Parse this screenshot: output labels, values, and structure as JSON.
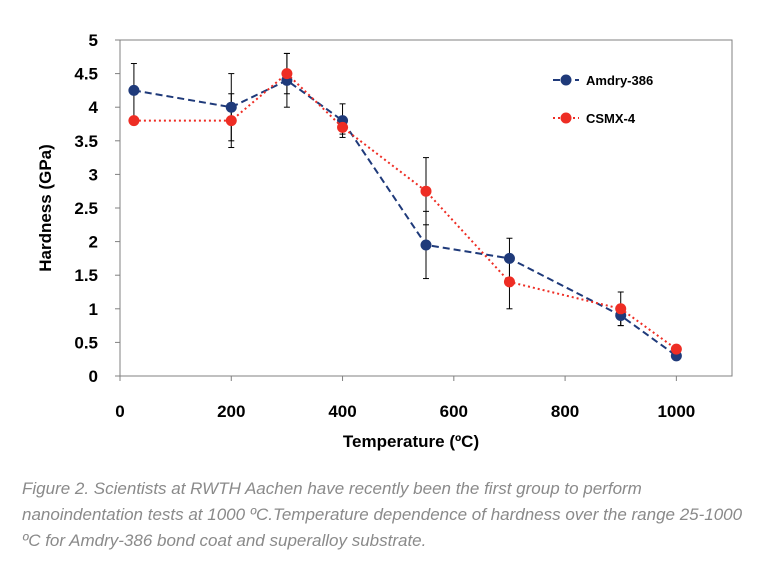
{
  "caption": "Figure 2. Scientists at RWTH Aachen have recently been the first group to perform nanoindentation tests at 1000 ºC.Temperature dependence of hardness over the range 25-1000 ºC for Amdry-386 bond coat and superalloy substrate.",
  "colors": {
    "amdry": "#1f3a7a",
    "csmx": "#ee2d24",
    "axis": "#808080",
    "errorbar": "#000000"
  },
  "chart_data": {
    "type": "line",
    "title": "",
    "xlabel": "Temperature (ºC)",
    "ylabel": "Hardness (GPa)",
    "xlim": [
      0,
      1100
    ],
    "ylim": [
      0,
      5
    ],
    "xticks": [
      "0",
      "200",
      "400",
      "600",
      "800",
      "1000"
    ],
    "yticks": [
      "0",
      "0.5",
      "1",
      "1.5",
      "2",
      "2.5",
      "3",
      "3.5",
      "4",
      "4.5",
      "5"
    ],
    "grid": false,
    "legend_position": "top-right",
    "series": [
      {
        "name": "Amdry-386",
        "line_style": "dashed",
        "color": "#1f3a7a",
        "x": [
          25,
          200,
          300,
          400,
          550,
          700,
          900,
          1000
        ],
        "y": [
          4.25,
          4.0,
          4.4,
          3.8,
          1.95,
          1.75,
          0.9,
          0.3
        ],
        "error": [
          0.4,
          0.5,
          0.4,
          0.25,
          0.5,
          0.3,
          0.15,
          0.05
        ]
      },
      {
        "name": "CSMX-4",
        "line_style": "dotted",
        "color": "#ee2d24",
        "x": [
          25,
          200,
          300,
          400,
          550,
          700,
          900,
          1000
        ],
        "y": [
          3.8,
          3.8,
          4.5,
          3.7,
          2.75,
          1.4,
          1.0,
          0.4
        ],
        "error": [
          0,
          0.4,
          0.3,
          0.1,
          0.5,
          0.4,
          0.25,
          0.05
        ]
      }
    ]
  }
}
